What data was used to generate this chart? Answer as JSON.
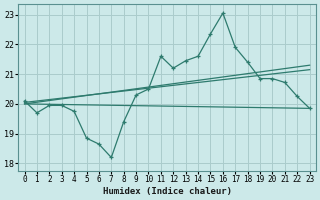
{
  "xlabel": "Humidex (Indice chaleur)",
  "ylabel": "",
  "bg_color": "#cce9e9",
  "grid_color": "#aacccc",
  "line_color": "#2e7b6e",
  "xlim": [
    -0.5,
    23.5
  ],
  "ylim": [
    17.75,
    23.35
  ],
  "yticks": [
    18,
    19,
    20,
    21,
    22,
    23
  ],
  "xticks": [
    0,
    1,
    2,
    3,
    4,
    5,
    6,
    7,
    8,
    9,
    10,
    11,
    12,
    13,
    14,
    15,
    16,
    17,
    18,
    19,
    20,
    21,
    22,
    23
  ],
  "main_series": [
    20.1,
    19.7,
    19.95,
    19.95,
    19.75,
    18.85,
    18.65,
    18.2,
    19.4,
    20.3,
    20.5,
    21.6,
    21.2,
    21.45,
    21.6,
    22.35,
    23.05,
    21.9,
    21.4,
    20.85,
    20.85,
    20.72,
    20.25,
    19.85
  ],
  "line1_x": [
    0,
    23
  ],
  "line1_y": [
    20.0,
    19.85
  ],
  "line2_x": [
    0,
    23
  ],
  "line2_y": [
    20.05,
    21.15
  ],
  "line3_x": [
    0,
    23
  ],
  "line3_y": [
    20.0,
    21.3
  ]
}
